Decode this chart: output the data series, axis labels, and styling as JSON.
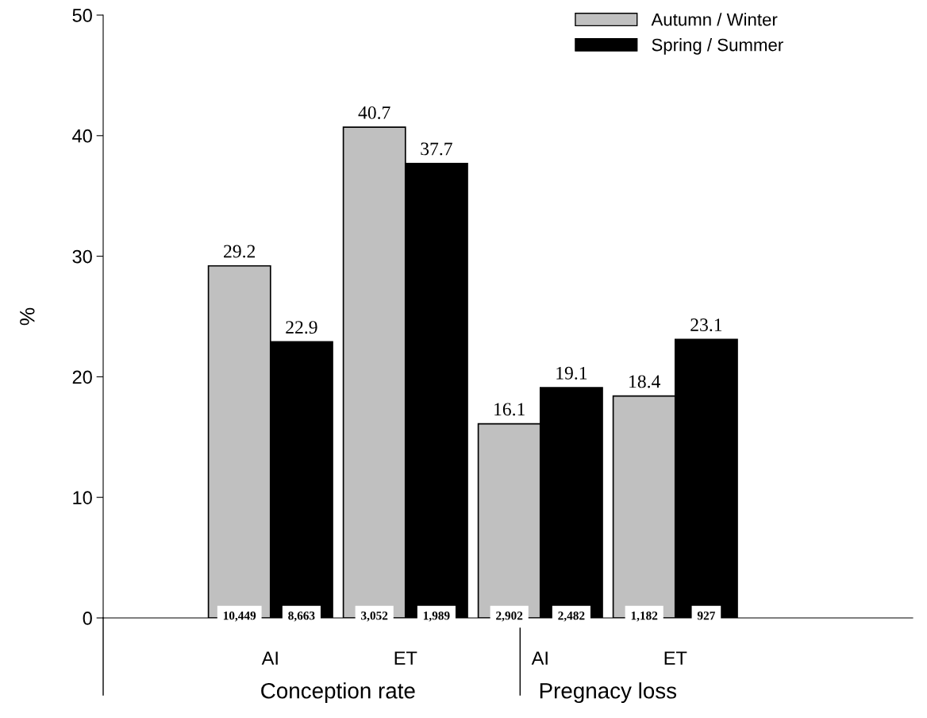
{
  "chart_data": {
    "type": "bar",
    "ylabel": "%",
    "categories": [
      "AI",
      "ET",
      "AI",
      "ET"
    ],
    "series": [
      {
        "name": "Autumn / Winter",
        "color": "#c0c0c0",
        "values": [
          29.2,
          40.7,
          16.1,
          18.4
        ]
      },
      {
        "name": "Spring / Summer",
        "color": "#000000",
        "values": [
          22.9,
          37.7,
          19.1,
          23.1
        ]
      }
    ],
    "data_labels": true,
    "ylim": [
      0,
      50
    ],
    "yticks": [
      0,
      10,
      20,
      30,
      40,
      50
    ],
    "grid": false,
    "legend": "top right",
    "annotations": [
      "10,449",
      "8,663",
      "3,052",
      "1,989",
      "2,902",
      "2,482",
      "1,182",
      "927",
      "Conception rate",
      "Pregnacy loss"
    ]
  }
}
